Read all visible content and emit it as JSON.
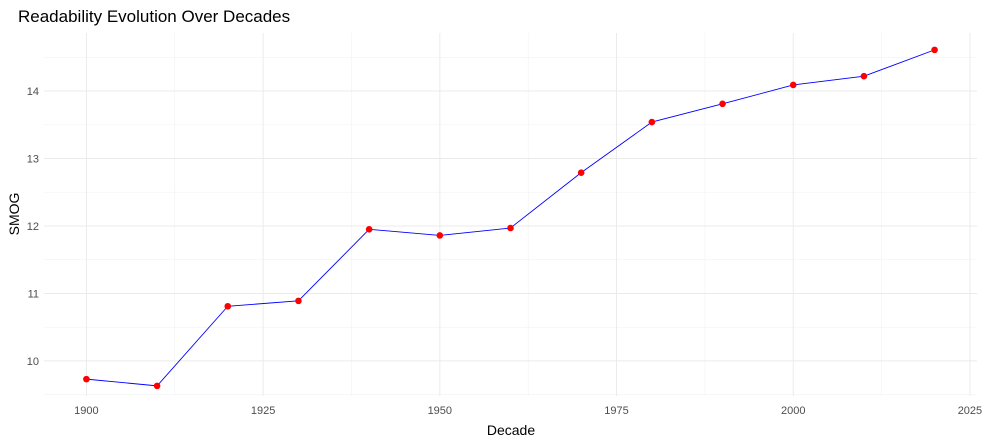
{
  "chart_data": {
    "type": "line",
    "title": "Readability Evolution Over Decades",
    "xlabel": "Decade",
    "ylabel": "SMOG",
    "x": [
      1900,
      1910,
      1920,
      1930,
      1940,
      1950,
      1960,
      1970,
      1980,
      1990,
      2000,
      2010,
      2020
    ],
    "series": [
      {
        "values": [
          9.73,
          9.63,
          10.81,
          10.89,
          11.95,
          11.86,
          11.97,
          12.79,
          13.54,
          13.81,
          14.09,
          14.22,
          14.61
        ]
      }
    ],
    "xlim": [
      1894,
      2026
    ],
    "ylim": [
      9.48,
      14.86
    ],
    "x_ticks": [
      1900,
      1925,
      1950,
      1975,
      2000,
      2025
    ],
    "y_ticks": [
      10,
      11,
      12,
      13,
      14
    ],
    "grid": true,
    "legend": "none",
    "colors": {
      "line": "#0000ff",
      "points": "#ff0000",
      "grid": "#ebebeb"
    }
  }
}
